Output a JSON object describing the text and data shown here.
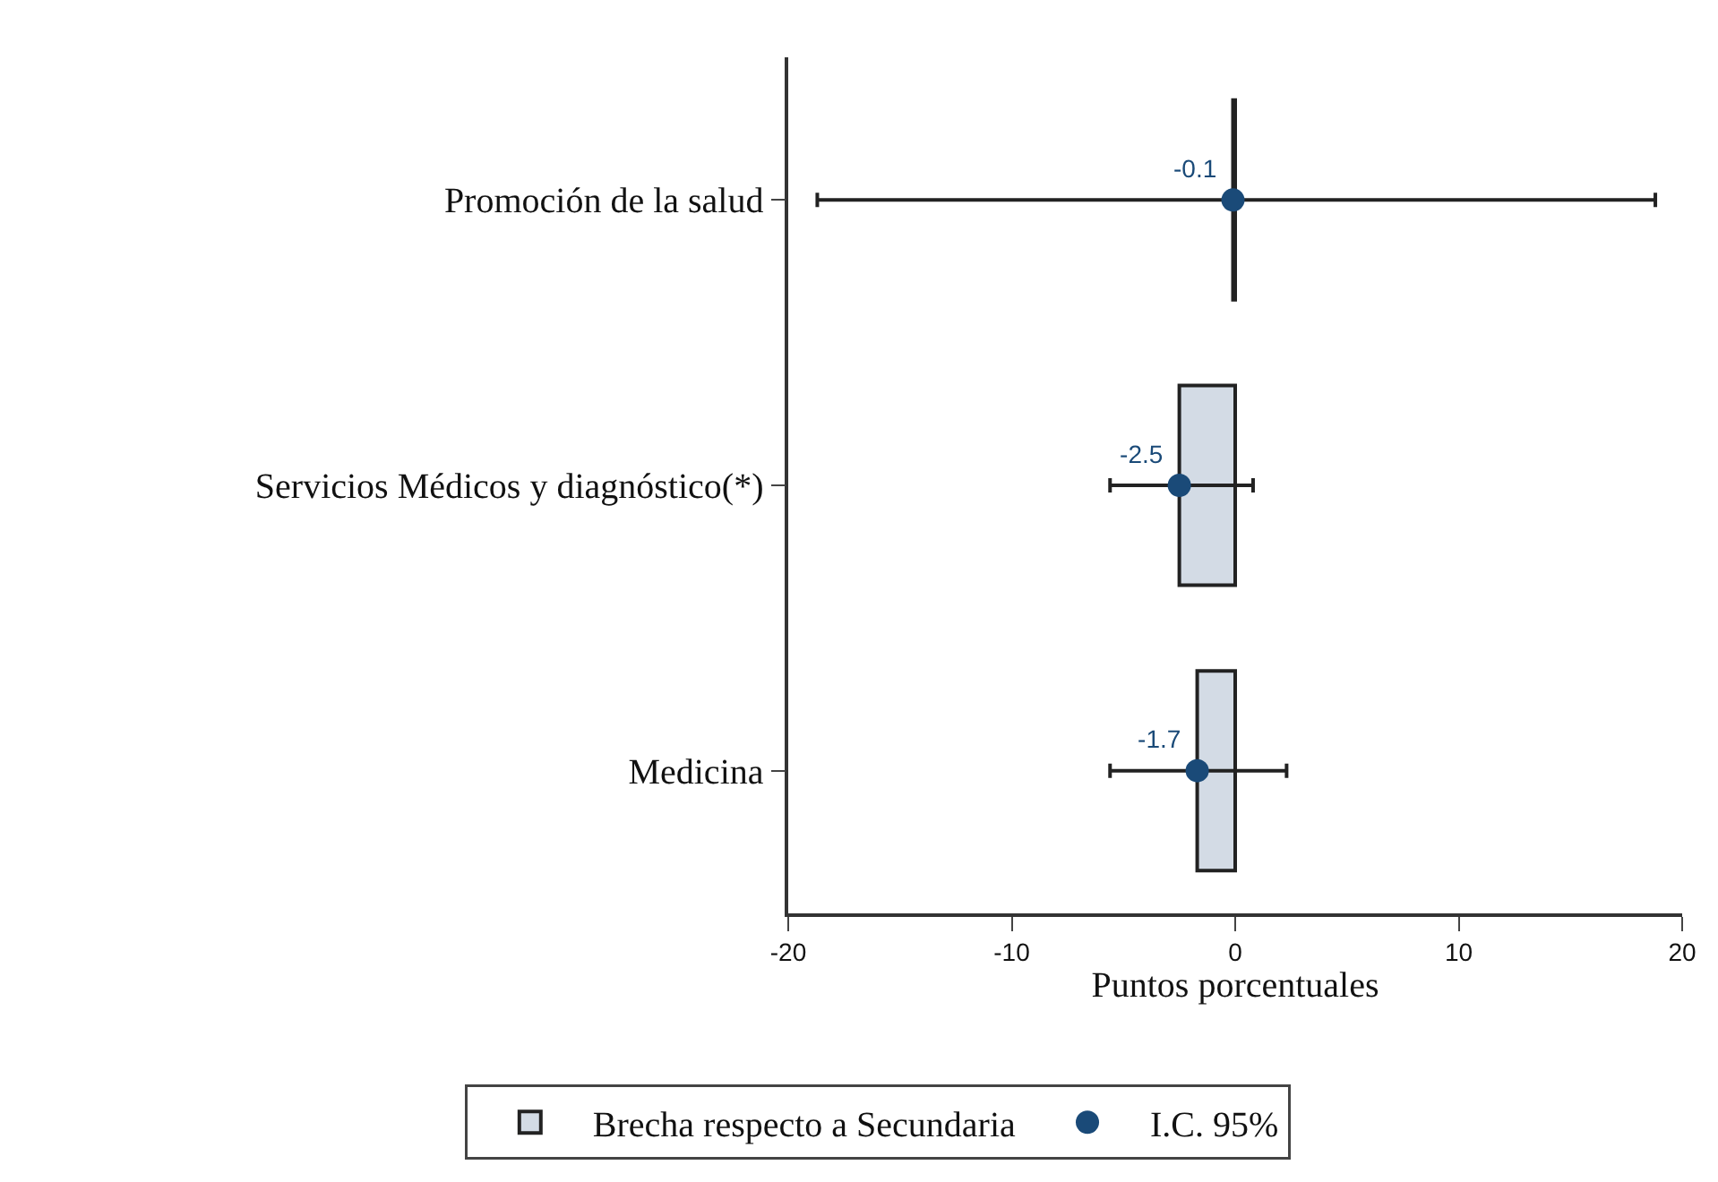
{
  "chart_data": {
    "type": "bar",
    "orientation": "horizontal",
    "xlabel": "Puntos porcentuales",
    "categories": [
      "Promoción de la salud",
      "Servicios Médicos y diagnóstico(*)",
      "Medicina"
    ],
    "series": [
      {
        "name": "Brecha respecto a Secundaria",
        "color": "#d3dbe5",
        "values": [
          -0.1,
          -2.5,
          -1.7
        ]
      },
      {
        "name": "I.C. 95%",
        "type": "scatter",
        "color": "#1a4a78",
        "values": [
          -0.1,
          -2.5,
          -1.7
        ],
        "errors": [
          [
            -18.7,
            18.8
          ],
          [
            -5.6,
            0.8
          ],
          [
            -5.6,
            2.3
          ]
        ],
        "value_labels": [
          "-0.1",
          "-2.5",
          "-1.7"
        ]
      }
    ],
    "xlim": [
      -20,
      20
    ],
    "xticks": [
      -20,
      -10,
      0,
      10,
      20
    ],
    "legend": "bottom",
    "marker": "circle"
  }
}
